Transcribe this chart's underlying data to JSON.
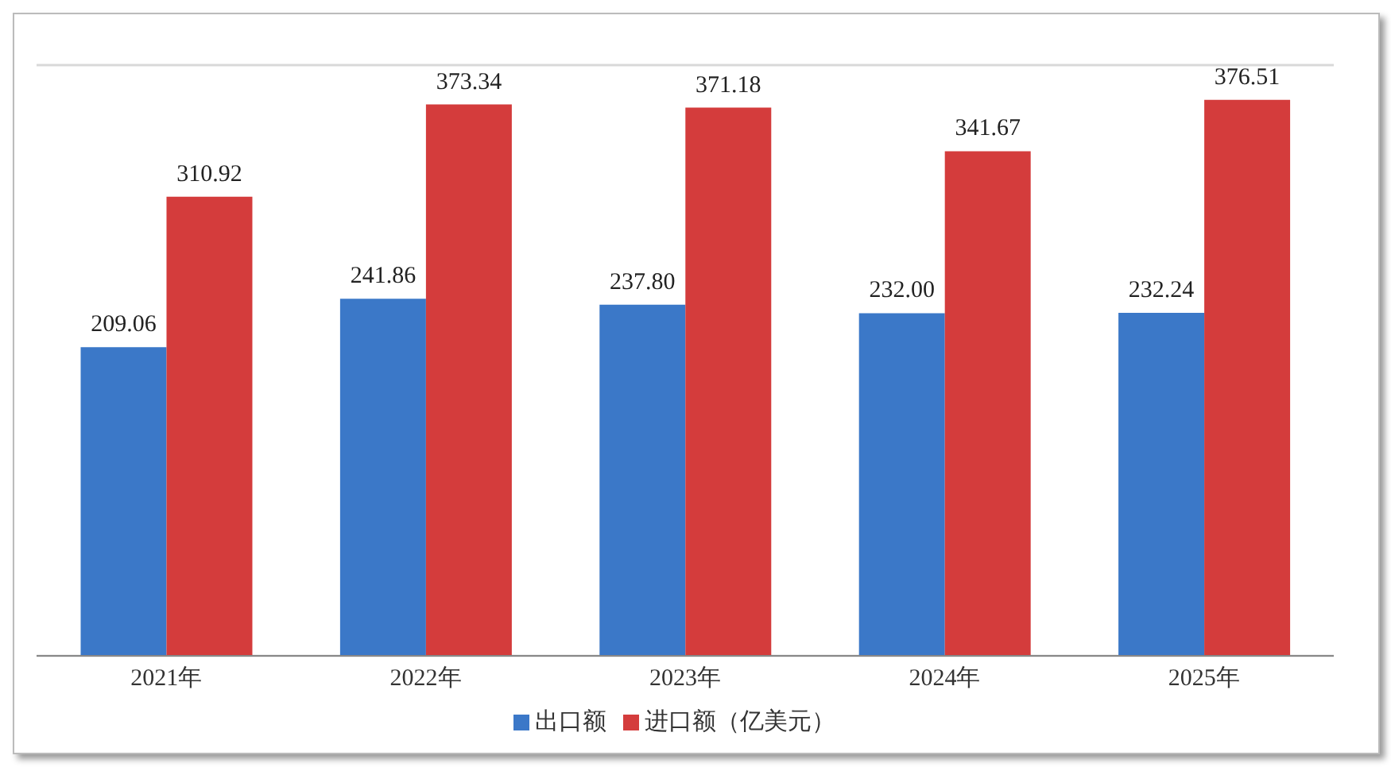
{
  "chart_data": {
    "type": "bar",
    "categories": [
      "2021年",
      "2022年",
      "2023年",
      "2024年",
      "2025年"
    ],
    "series": [
      {
        "name": "出口额",
        "color": "#3b78c8",
        "values": [
          209.06,
          241.86,
          237.8,
          232.0,
          232.24
        ],
        "value_labels": [
          "209.06",
          "241.86",
          "237.80",
          "232.00",
          "232.24"
        ]
      },
      {
        "name": "进口额（亿美元）",
        "color": "#d43c3c",
        "values": [
          310.92,
          373.34,
          371.18,
          341.67,
          376.51
        ],
        "value_labels": [
          "310.92",
          "373.34",
          "371.18",
          "341.67",
          "376.51"
        ]
      }
    ],
    "ylim": [
      0,
      400
    ],
    "tick_labels": "x",
    "grid": "y",
    "legend": "bottom"
  }
}
